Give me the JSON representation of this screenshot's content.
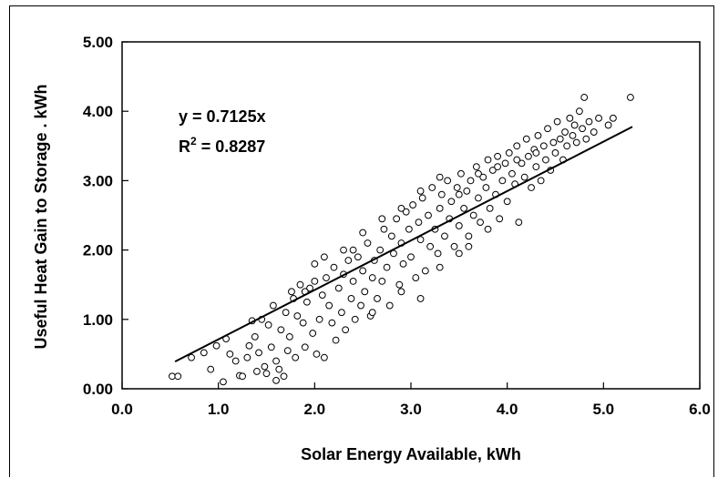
{
  "chart_data": {
    "type": "scatter",
    "title": "",
    "xlabel": "Solar Energy Available, kWh",
    "ylabel": "Useful Heat Gain to Storage . kWh",
    "xlim": [
      0,
      6
    ],
    "ylim": [
      0,
      5
    ],
    "x_ticks": [
      "0.0",
      "1.0",
      "2.0",
      "3.0",
      "4.0",
      "5.0",
      "6.0"
    ],
    "y_ticks": [
      "0.00",
      "1.00",
      "2.00",
      "3.00",
      "4.00",
      "5.00"
    ],
    "grid": false,
    "legend": "none",
    "annotations": {
      "equation": "y = 0.7125x",
      "r2_prefix": "R",
      "r2_exp": "2",
      "r2_value": " = 0.8287"
    },
    "trendline": {
      "slope": 0.7125,
      "intercept": 0,
      "x_range": [
        0.55,
        5.3
      ]
    },
    "series": [
      {
        "marker": "open-circle",
        "points": [
          [
            0.52,
            0.18
          ],
          [
            0.58,
            0.18
          ],
          [
            0.72,
            0.45
          ],
          [
            0.85,
            0.52
          ],
          [
            0.92,
            0.28
          ],
          [
            0.98,
            0.62
          ],
          [
            1.05,
            0.1
          ],
          [
            1.08,
            0.72
          ],
          [
            1.12,
            0.5
          ],
          [
            1.18,
            0.4
          ],
          [
            1.22,
            0.19
          ],
          [
            1.25,
            0.18
          ],
          [
            1.3,
            0.45
          ],
          [
            1.32,
            0.62
          ],
          [
            1.35,
            0.98
          ],
          [
            1.38,
            0.75
          ],
          [
            1.4,
            0.25
          ],
          [
            1.42,
            0.52
          ],
          [
            1.45,
            1.0
          ],
          [
            1.48,
            0.32
          ],
          [
            1.5,
            0.22
          ],
          [
            1.52,
            0.92
          ],
          [
            1.55,
            0.6
          ],
          [
            1.57,
            1.2
          ],
          [
            1.6,
            0.4
          ],
          [
            1.6,
            0.12
          ],
          [
            1.63,
            0.28
          ],
          [
            1.65,
            0.85
          ],
          [
            1.68,
            0.18
          ],
          [
            1.7,
            1.1
          ],
          [
            1.72,
            0.55
          ],
          [
            1.74,
            0.75
          ],
          [
            1.76,
            1.4
          ],
          [
            1.78,
            1.3
          ],
          [
            1.8,
            0.45
          ],
          [
            1.82,
            1.05
          ],
          [
            1.85,
            1.5
          ],
          [
            1.88,
            0.95
          ],
          [
            1.9,
            0.6
          ],
          [
            1.92,
            1.25
          ],
          [
            1.95,
            1.45
          ],
          [
            1.98,
            0.8
          ],
          [
            2.0,
            1.55
          ],
          [
            2.02,
            0.5
          ],
          [
            2.05,
            1.0
          ],
          [
            2.08,
            1.35
          ],
          [
            2.1,
            0.45
          ],
          [
            2.12,
            1.6
          ],
          [
            2.15,
            1.2
          ],
          [
            2.18,
            0.95
          ],
          [
            2.2,
            1.75
          ],
          [
            2.22,
            0.7
          ],
          [
            2.25,
            1.45
          ],
          [
            2.28,
            1.1
          ],
          [
            2.3,
            1.65
          ],
          [
            2.32,
            0.85
          ],
          [
            2.35,
            1.85
          ],
          [
            2.38,
            1.3
          ],
          [
            2.4,
            1.55
          ],
          [
            2.42,
            1.0
          ],
          [
            2.45,
            1.9
          ],
          [
            2.48,
            1.2
          ],
          [
            2.5,
            1.7
          ],
          [
            2.52,
            1.4
          ],
          [
            2.55,
            2.1
          ],
          [
            2.58,
            1.05
          ],
          [
            2.6,
            1.6
          ],
          [
            2.62,
            1.85
          ],
          [
            2.65,
            1.3
          ],
          [
            2.68,
            2.0
          ],
          [
            2.7,
            1.55
          ],
          [
            2.72,
            2.3
          ],
          [
            2.75,
            1.75
          ],
          [
            2.78,
            1.2
          ],
          [
            2.8,
            2.2
          ],
          [
            2.82,
            1.95
          ],
          [
            2.85,
            2.45
          ],
          [
            2.88,
            1.5
          ],
          [
            2.9,
            2.1
          ],
          [
            2.92,
            1.8
          ],
          [
            2.95,
            2.55
          ],
          [
            2.98,
            2.3
          ],
          [
            3.0,
            1.9
          ],
          [
            3.02,
            2.65
          ],
          [
            3.05,
            1.6
          ],
          [
            3.08,
            2.4
          ],
          [
            3.1,
            2.15
          ],
          [
            3.12,
            2.75
          ],
          [
            3.15,
            1.7
          ],
          [
            3.18,
            2.5
          ],
          [
            3.2,
            2.05
          ],
          [
            3.22,
            2.9
          ],
          [
            3.25,
            2.3
          ],
          [
            3.28,
            1.95
          ],
          [
            3.3,
            2.6
          ],
          [
            3.32,
            2.8
          ],
          [
            3.35,
            2.2
          ],
          [
            3.38,
            3.0
          ],
          [
            3.4,
            2.45
          ],
          [
            3.42,
            2.7
          ],
          [
            3.45,
            2.05
          ],
          [
            3.48,
            2.9
          ],
          [
            3.5,
            2.35
          ],
          [
            3.52,
            3.1
          ],
          [
            3.55,
            2.6
          ],
          [
            3.58,
            2.85
          ],
          [
            3.6,
            2.2
          ],
          [
            3.62,
            3.0
          ],
          [
            3.65,
            2.5
          ],
          [
            3.68,
            3.2
          ],
          [
            3.7,
            2.75
          ],
          [
            3.72,
            2.4
          ],
          [
            3.75,
            3.05
          ],
          [
            3.78,
            2.9
          ],
          [
            3.8,
            3.3
          ],
          [
            3.82,
            2.6
          ],
          [
            3.85,
            3.15
          ],
          [
            3.88,
            2.8
          ],
          [
            3.9,
            3.35
          ],
          [
            3.92,
            2.45
          ],
          [
            3.95,
            3.0
          ],
          [
            3.98,
            3.25
          ],
          [
            4.0,
            2.7
          ],
          [
            4.02,
            3.4
          ],
          [
            4.05,
            3.1
          ],
          [
            4.08,
            2.95
          ],
          [
            4.1,
            3.5
          ],
          [
            4.12,
            2.4
          ],
          [
            4.15,
            3.25
          ],
          [
            4.18,
            3.05
          ],
          [
            4.2,
            3.6
          ],
          [
            4.22,
            3.35
          ],
          [
            4.25,
            2.9
          ],
          [
            4.28,
            3.45
          ],
          [
            4.3,
            3.2
          ],
          [
            4.32,
            3.65
          ],
          [
            4.35,
            3.0
          ],
          [
            4.38,
            3.5
          ],
          [
            4.4,
            3.3
          ],
          [
            4.42,
            3.75
          ],
          [
            4.45,
            3.15
          ],
          [
            4.48,
            3.55
          ],
          [
            4.5,
            3.4
          ],
          [
            4.52,
            3.85
          ],
          [
            4.55,
            3.6
          ],
          [
            4.58,
            3.3
          ],
          [
            4.6,
            3.7
          ],
          [
            4.62,
            3.5
          ],
          [
            4.65,
            3.9
          ],
          [
            4.68,
            3.65
          ],
          [
            4.7,
            3.8
          ],
          [
            4.72,
            3.55
          ],
          [
            4.75,
            4.0
          ],
          [
            4.78,
            3.75
          ],
          [
            4.8,
            4.2
          ],
          [
            4.82,
            3.6
          ],
          [
            4.85,
            3.85
          ],
          [
            4.9,
            3.7
          ],
          [
            4.95,
            3.9
          ],
          [
            5.05,
            3.8
          ],
          [
            5.1,
            3.9
          ],
          [
            5.28,
            4.2
          ],
          [
            2.3,
            2.0
          ],
          [
            2.5,
            2.25
          ],
          [
            2.7,
            2.45
          ],
          [
            2.9,
            2.6
          ],
          [
            3.1,
            2.85
          ],
          [
            3.3,
            3.05
          ],
          [
            3.5,
            2.8
          ],
          [
            3.7,
            3.1
          ],
          [
            3.9,
            3.2
          ],
          [
            4.1,
            3.3
          ],
          [
            4.3,
            3.4
          ],
          [
            2.6,
            1.1
          ],
          [
            2.9,
            1.4
          ],
          [
            3.1,
            1.3
          ],
          [
            3.3,
            1.75
          ],
          [
            3.5,
            1.95
          ],
          [
            3.6,
            2.05
          ],
          [
            3.8,
            2.3
          ],
          [
            2.0,
            1.8
          ],
          [
            2.1,
            1.9
          ],
          [
            1.9,
            1.4
          ],
          [
            2.4,
            2.0
          ]
        ]
      }
    ]
  }
}
